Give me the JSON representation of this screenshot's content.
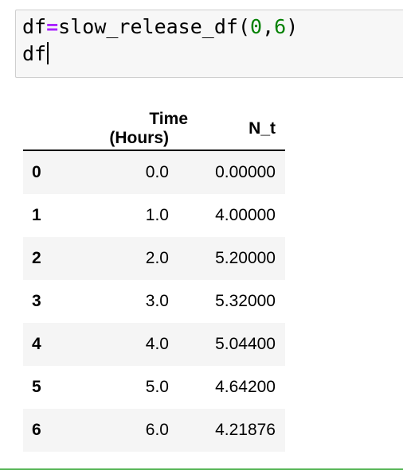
{
  "code_cell": {
    "line1": {
      "var": "df",
      "op": "=",
      "call": "slow_release_df(",
      "arg1": "0",
      "comma": ",",
      "arg2": "6",
      "close": ")"
    },
    "line2": "df"
  },
  "dataframe": {
    "columns": [
      "",
      "Time (Hours)",
      "N_t"
    ],
    "rows": [
      {
        "index": "0",
        "time": "0.0",
        "nt": "0.00000"
      },
      {
        "index": "1",
        "time": "1.0",
        "nt": "4.00000"
      },
      {
        "index": "2",
        "time": "2.0",
        "nt": "5.20000"
      },
      {
        "index": "3",
        "time": "3.0",
        "nt": "5.32000"
      },
      {
        "index": "4",
        "time": "4.0",
        "nt": "5.04400"
      },
      {
        "index": "5",
        "time": "5.0",
        "nt": "4.64200"
      },
      {
        "index": "6",
        "time": "6.0",
        "nt": "4.21876"
      }
    ]
  },
  "colors": {
    "operator": "#aa22ff",
    "number": "#008000",
    "cell_background": "#f7f7f7",
    "row_stripe": "#f5f5f5",
    "selected_cell_border": "#5cb85c"
  }
}
